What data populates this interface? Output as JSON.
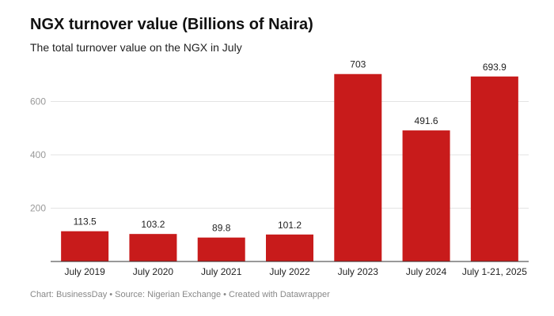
{
  "chart_data": {
    "type": "bar",
    "title": "NGX turnover value (Billions of Naira)",
    "subtitle": "The total turnover value on the NGX in July",
    "categories": [
      "July 2019",
      "July 2020",
      "July 2021",
      "July 2022",
      "July 2023",
      "July 2024",
      "July 1-21, 2025"
    ],
    "values": [
      113.5,
      103.2,
      89.8,
      101.2,
      703,
      491.6,
      693.9
    ],
    "value_labels": [
      "113.5",
      "103.2",
      "89.8",
      "101.2",
      "703",
      "491.6",
      "693.9"
    ],
    "y_ticks": [
      200,
      400,
      600
    ],
    "ylim": [
      0,
      760
    ],
    "xlabel": "",
    "ylabel": "",
    "grid": true,
    "bar_color": "#c81b1b"
  },
  "footer": {
    "text": "Chart: BusinessDay • Source: Nigerian Exchange • Created with Datawrapper"
  }
}
